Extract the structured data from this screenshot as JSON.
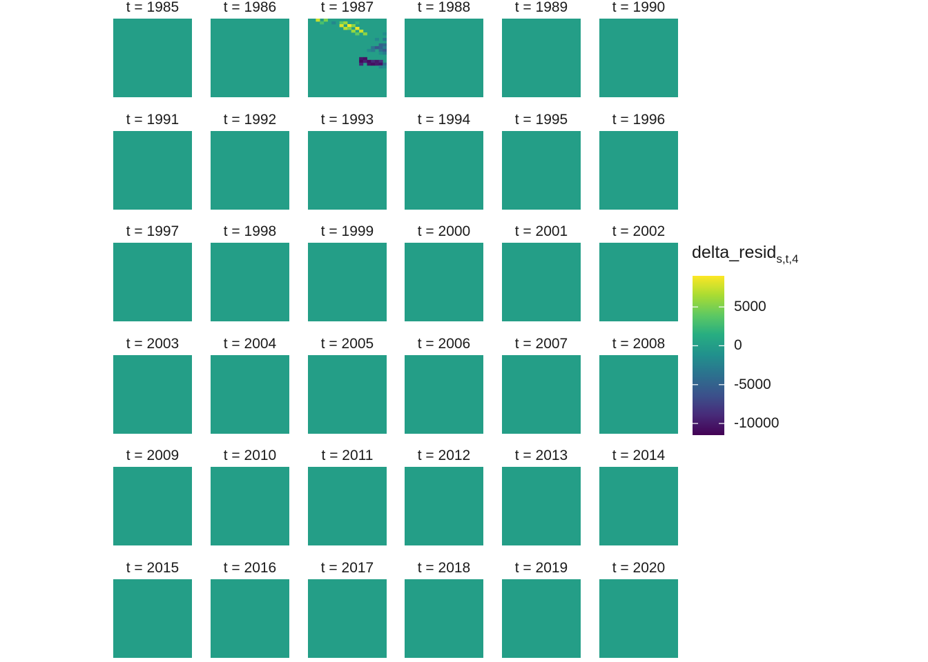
{
  "chart_data": {
    "type": "heatmap",
    "title": "",
    "facet_label_prefix": "t = ",
    "facets": [
      "1985",
      "1986",
      "1987",
      "1988",
      "1989",
      "1990",
      "1991",
      "1992",
      "1993",
      "1994",
      "1995",
      "1996",
      "1997",
      "1998",
      "1999",
      "2000",
      "2001",
      "2002",
      "2003",
      "2004",
      "2005",
      "2006",
      "2007",
      "2008",
      "2009",
      "2010",
      "2011",
      "2012",
      "2013",
      "2014",
      "2015",
      "2016",
      "2017",
      "2018",
      "2019",
      "2020"
    ],
    "baseline_value": 0,
    "anomalous_facet": "1987",
    "anomaly_cells": [
      {
        "col": 2,
        "row": 0,
        "value": 7500
      },
      {
        "col": 4,
        "row": 0,
        "value": 5000
      },
      {
        "col": 3,
        "row": 1,
        "value": 3000
      },
      {
        "col": 6,
        "row": 1,
        "value": -2000
      },
      {
        "col": 8,
        "row": 1,
        "value": 4000
      },
      {
        "col": 9,
        "row": 1,
        "value": 6000
      },
      {
        "col": 12,
        "row": 1,
        "value": 2000
      },
      {
        "col": 8,
        "row": 2,
        "value": 8000
      },
      {
        "col": 10,
        "row": 2,
        "value": 9000
      },
      {
        "col": 11,
        "row": 2,
        "value": 5500
      },
      {
        "col": 9,
        "row": 3,
        "value": 7000
      },
      {
        "col": 10,
        "row": 3,
        "value": 5000
      },
      {
        "col": 12,
        "row": 3,
        "value": 8500
      },
      {
        "col": 11,
        "row": 4,
        "value": 6000
      },
      {
        "col": 13,
        "row": 4,
        "value": 7500
      },
      {
        "col": 12,
        "row": 5,
        "value": 4000
      },
      {
        "col": 14,
        "row": 5,
        "value": 5500
      },
      {
        "col": 19,
        "row": 5,
        "value": -1500
      },
      {
        "col": 20,
        "row": 6,
        "value": 2000
      },
      {
        "col": 17,
        "row": 7,
        "value": -1800
      },
      {
        "col": 19,
        "row": 7,
        "value": -3000
      },
      {
        "col": 18,
        "row": 9,
        "value": -5000
      },
      {
        "col": 19,
        "row": 9,
        "value": -4200
      },
      {
        "col": 16,
        "row": 10,
        "value": -3500
      },
      {
        "col": 17,
        "row": 10,
        "value": -6000
      },
      {
        "col": 18,
        "row": 10,
        "value": -5000
      },
      {
        "col": 19,
        "row": 10,
        "value": -2500
      },
      {
        "col": 15,
        "row": 11,
        "value": -2000
      },
      {
        "col": 16,
        "row": 11,
        "value": -3000
      },
      {
        "col": 18,
        "row": 11,
        "value": -4000
      },
      {
        "col": 19,
        "row": 11,
        "value": -5500
      },
      {
        "col": 18,
        "row": 12,
        "value": -1500
      },
      {
        "col": 19,
        "row": 12,
        "value": -2800
      },
      {
        "col": 13,
        "row": 14,
        "value": -10000
      },
      {
        "col": 14,
        "row": 14,
        "value": -10500
      },
      {
        "col": 13,
        "row": 15,
        "value": -11000
      },
      {
        "col": 14,
        "row": 15,
        "value": -9500
      },
      {
        "col": 15,
        "row": 15,
        "value": -10800
      },
      {
        "col": 16,
        "row": 15,
        "value": -9000
      },
      {
        "col": 17,
        "row": 15,
        "value": -10000
      },
      {
        "col": 18,
        "row": 15,
        "value": -8500
      },
      {
        "col": 13,
        "row": 16,
        "value": -9000
      },
      {
        "col": 15,
        "row": 16,
        "value": -10200
      },
      {
        "col": 16,
        "row": 16,
        "value": -10600
      },
      {
        "col": 17,
        "row": 16,
        "value": -9800
      },
      {
        "col": 18,
        "row": 16,
        "value": -10400
      },
      {
        "col": 19,
        "row": 16,
        "value": -4000
      },
      {
        "col": 18,
        "row": 17,
        "value": -2500
      },
      {
        "col": 19,
        "row": 17,
        "value": -1500
      }
    ],
    "anomaly_grid": {
      "cols": 20,
      "rows": 20,
      "extent_cols": 20,
      "extent_rows": 19
    },
    "legend": {
      "title_main": "delta_resid",
      "title_sub": "s,t,4",
      "range": [
        -11500,
        9000
      ],
      "ticks": [
        5000,
        0,
        -5000,
        -10000
      ],
      "tick_labels": [
        "5000",
        "0",
        "-5000",
        "-10000"
      ],
      "colormap": "viridis",
      "placement": "right"
    }
  }
}
